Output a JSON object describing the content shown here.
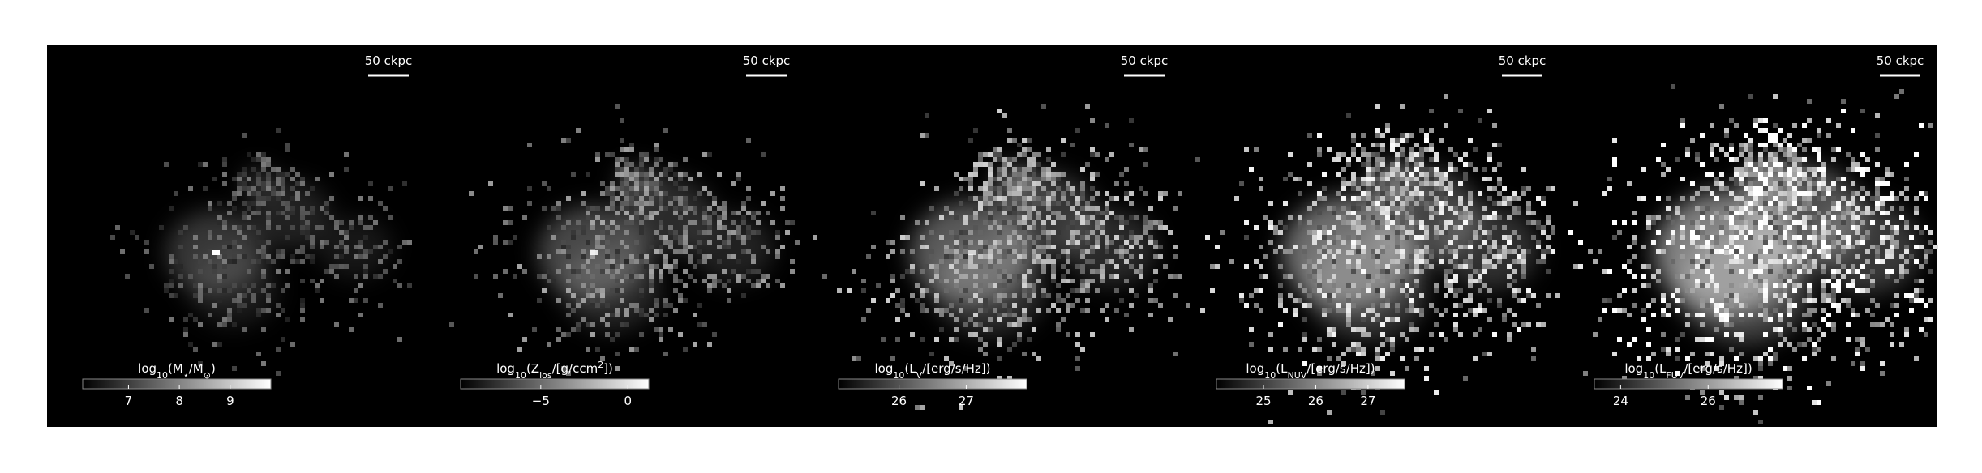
{
  "chart_data": [
    {
      "type": "image",
      "scalebar": "50 ckpc",
      "label": [
        {
          "text": "log"
        },
        {
          "text": "10",
          "pos": "sub"
        },
        {
          "text": "(M"
        },
        {
          "text": "⋆",
          "pos": "sub"
        },
        {
          "text": "/M"
        },
        {
          "text": "⊙",
          "pos": "sub"
        },
        {
          "text": ")"
        }
      ],
      "clim": [
        6.1,
        9.8
      ],
      "cticks": [
        7,
        8,
        9
      ]
    },
    {
      "type": "image",
      "scalebar": "50 ckpc",
      "label": [
        {
          "text": "log"
        },
        {
          "text": "10",
          "pos": "sub"
        },
        {
          "text": "(Z"
        },
        {
          "text": "los",
          "pos": "sub"
        },
        {
          "text": "/[g/ccm"
        },
        {
          "text": "2",
          "pos": "sup"
        },
        {
          "text": "])"
        }
      ],
      "clim": [
        -9.6,
        1.2
      ],
      "cticks": [
        {
          "value": -5,
          "label": "−5"
        },
        0
      ]
    },
    {
      "type": "image",
      "scalebar": "50 ckpc",
      "label": [
        {
          "text": "log"
        },
        {
          "text": "10",
          "pos": "sub"
        },
        {
          "text": "(L"
        },
        {
          "text": "V",
          "pos": "sub"
        },
        {
          "text": "/[erg/s/Hz])"
        }
      ],
      "clim": [
        25.1,
        27.9
      ],
      "cticks": [
        26,
        27
      ]
    },
    {
      "type": "image",
      "scalebar": "50 ckpc",
      "label": [
        {
          "text": "log"
        },
        {
          "text": "10",
          "pos": "sub"
        },
        {
          "text": "(L"
        },
        {
          "text": "NUV",
          "pos": "sub"
        },
        {
          "text": "/[erg/s/Hz])"
        }
      ],
      "clim": [
        24.1,
        27.7
      ],
      "cticks": [
        25,
        26,
        27
      ]
    },
    {
      "type": "image",
      "scalebar": "50 ckpc",
      "label": [
        {
          "text": "log"
        },
        {
          "text": "10",
          "pos": "sub"
        },
        {
          "text": "(L"
        },
        {
          "text": "FUV",
          "pos": "sub"
        },
        {
          "text": "/[erg/s/Hz])"
        }
      ],
      "clim": [
        23.4,
        27.7
      ],
      "cticks": [
        24,
        26
      ]
    }
  ]
}
